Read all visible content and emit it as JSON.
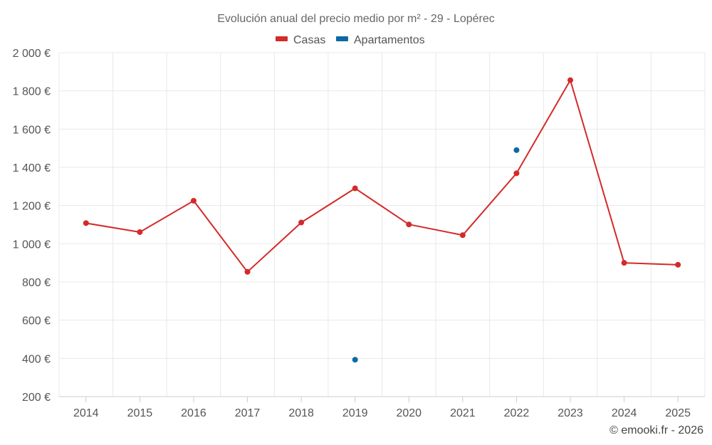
{
  "chart_data": {
    "type": "line",
    "title": "Evolución anual del precio medio por m² - 29 - Lopérec",
    "categories": [
      "2014",
      "2015",
      "2016",
      "2017",
      "2018",
      "2019",
      "2020",
      "2021",
      "2022",
      "2023",
      "2024",
      "2025"
    ],
    "series": [
      {
        "name": "Casas",
        "color": "#d42a2a",
        "values": [
          1108,
          1061,
          1225,
          853,
          1111,
          1290,
          1101,
          1045,
          1369,
          1856,
          900,
          890
        ]
      },
      {
        "name": "Apartamentos",
        "color": "#0b6aa2",
        "values": [
          null,
          null,
          null,
          null,
          null,
          393,
          null,
          null,
          1490,
          null,
          null,
          null
        ]
      }
    ],
    "ylim": [
      200,
      2000
    ],
    "yticks": [
      200,
      400,
      600,
      800,
      1000,
      1200,
      1400,
      1600,
      1800,
      2000
    ],
    "ytick_labels": [
      "200 €",
      "400 €",
      "600 €",
      "800 €",
      "1 000 €",
      "1 200 €",
      "1 400 €",
      "1 600 €",
      "1 800 €",
      "2 000 €"
    ],
    "xlabel": "",
    "ylabel": "",
    "grid": true,
    "legend": "top-center",
    "credit": "© emooki.fr - 2026"
  }
}
